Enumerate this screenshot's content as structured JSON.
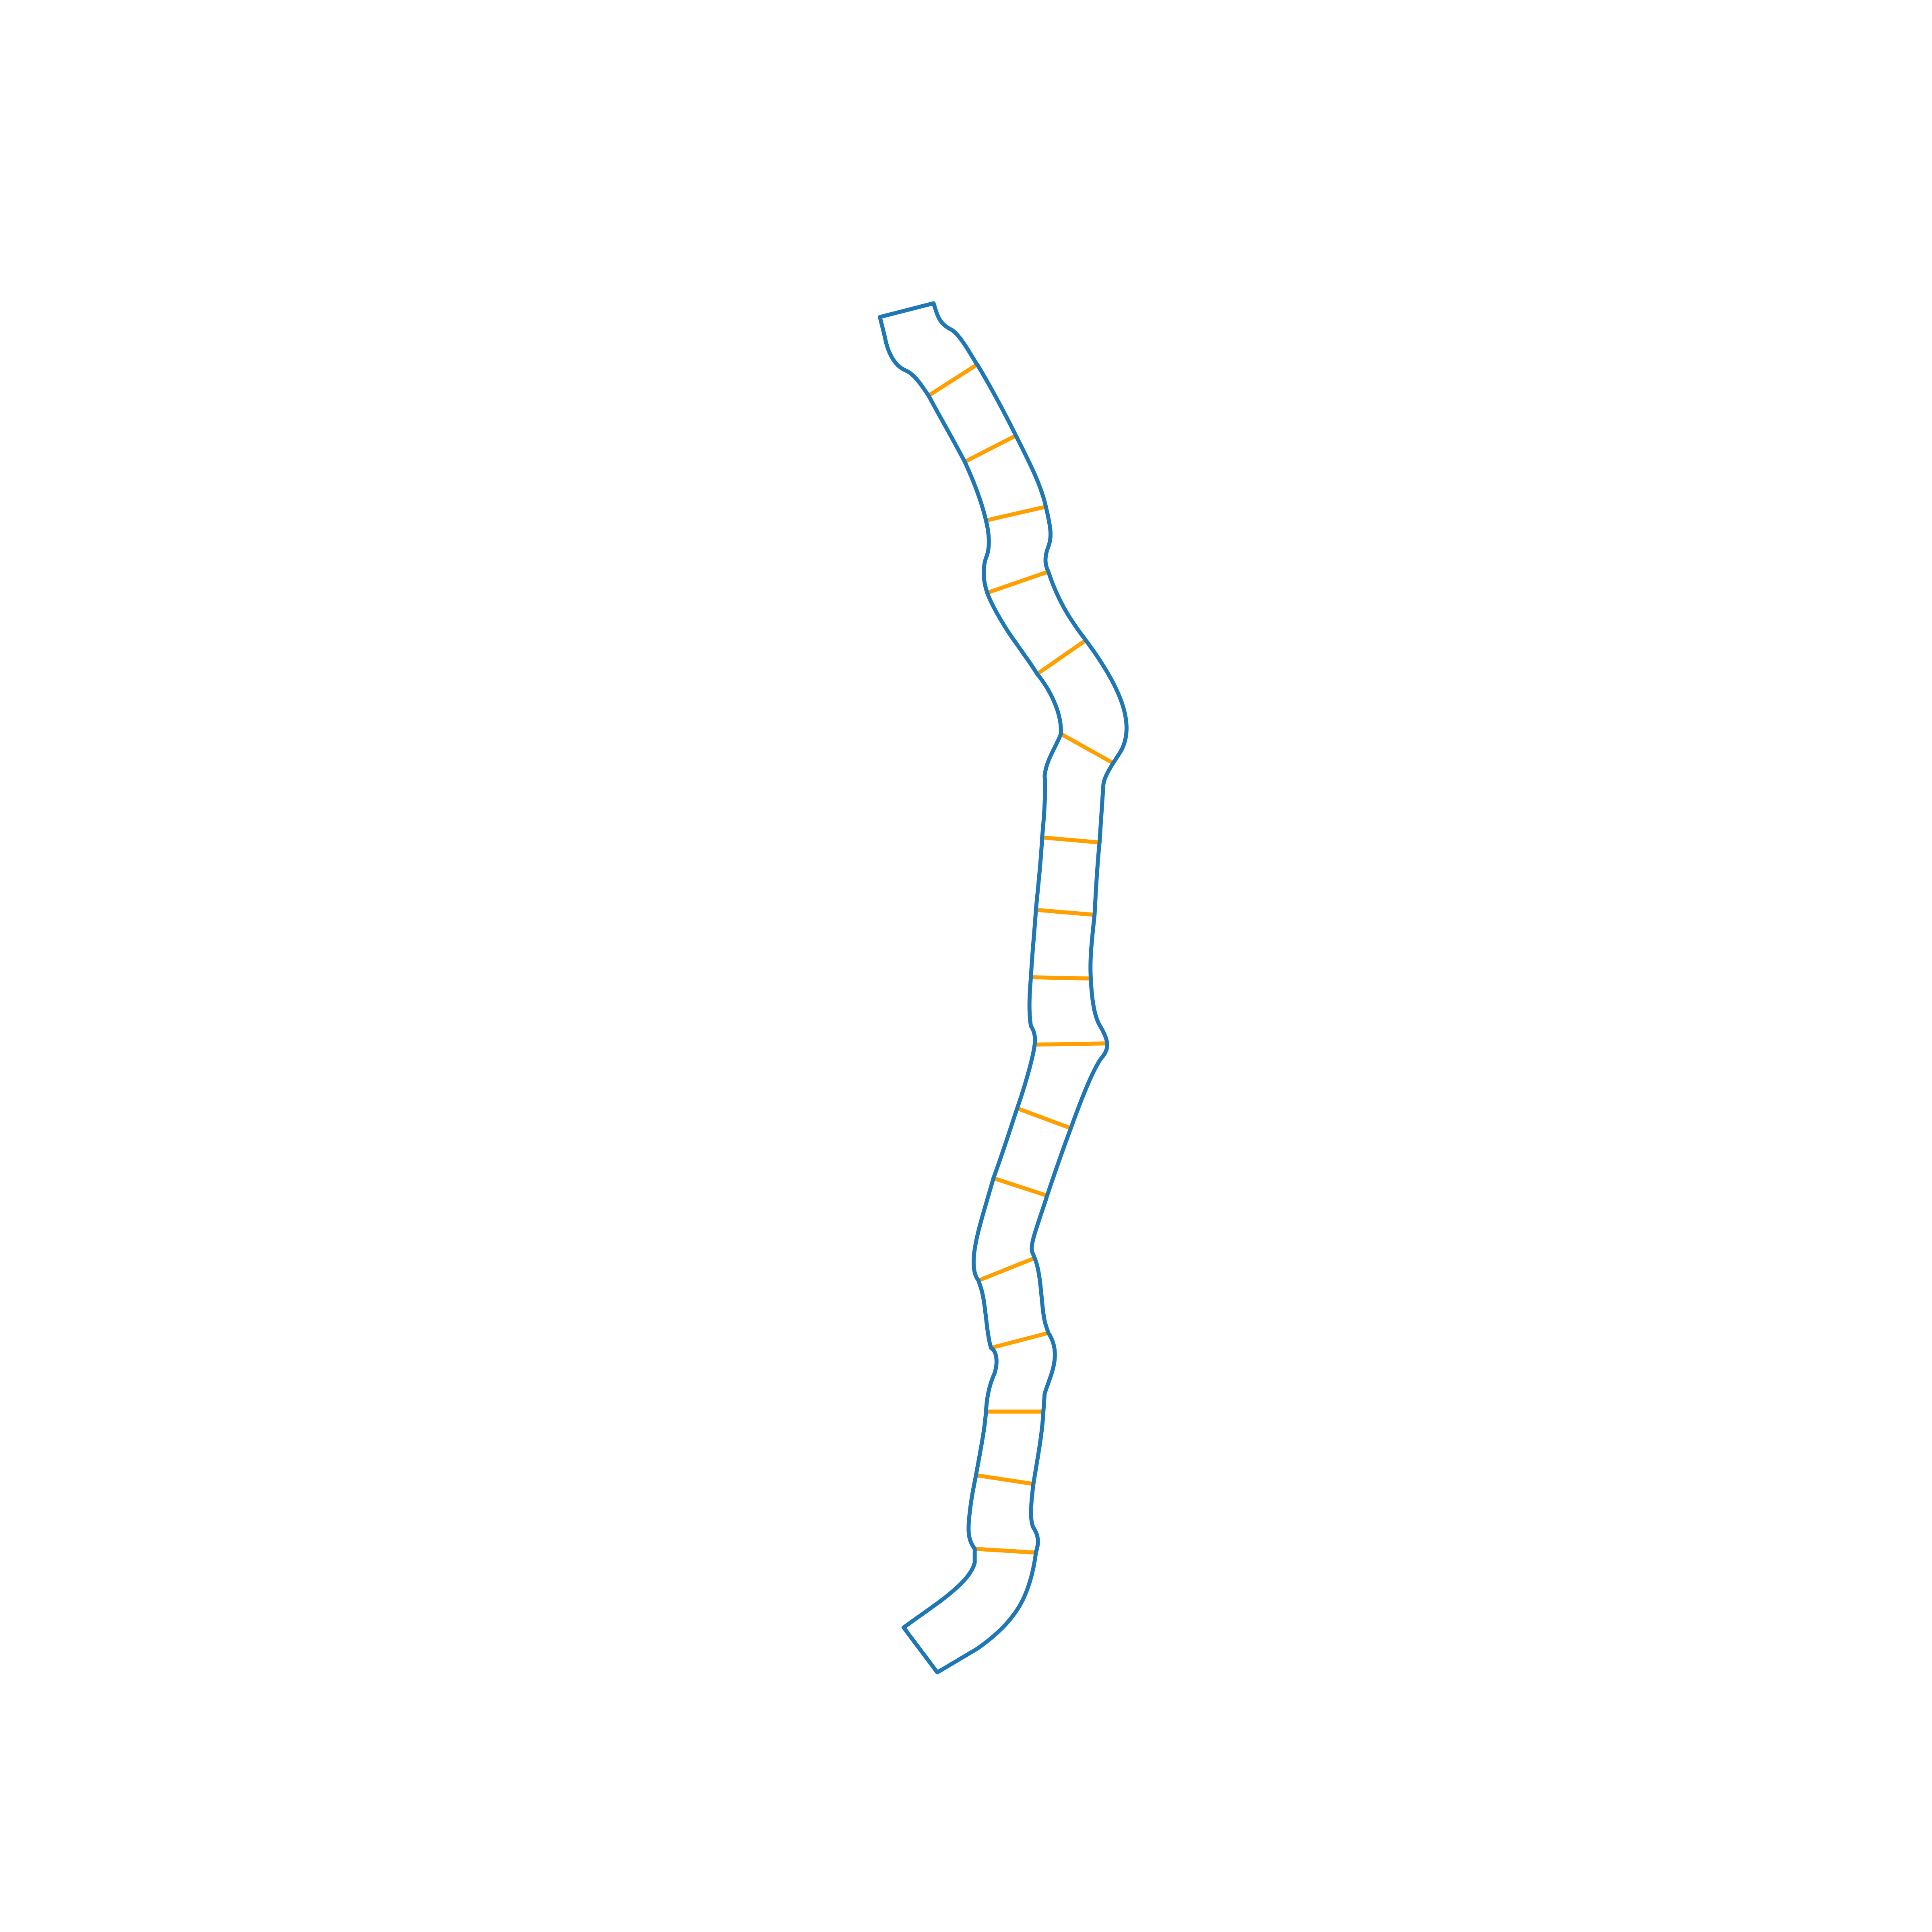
{
  "colors": {
    "background": "#ffffff",
    "outline": "#1f77b4",
    "rungs": "#ff9f00"
  },
  "diagram": {
    "type": "segmented-strip",
    "segment_count": 18,
    "rung_count": 17,
    "has_text": false
  }
}
